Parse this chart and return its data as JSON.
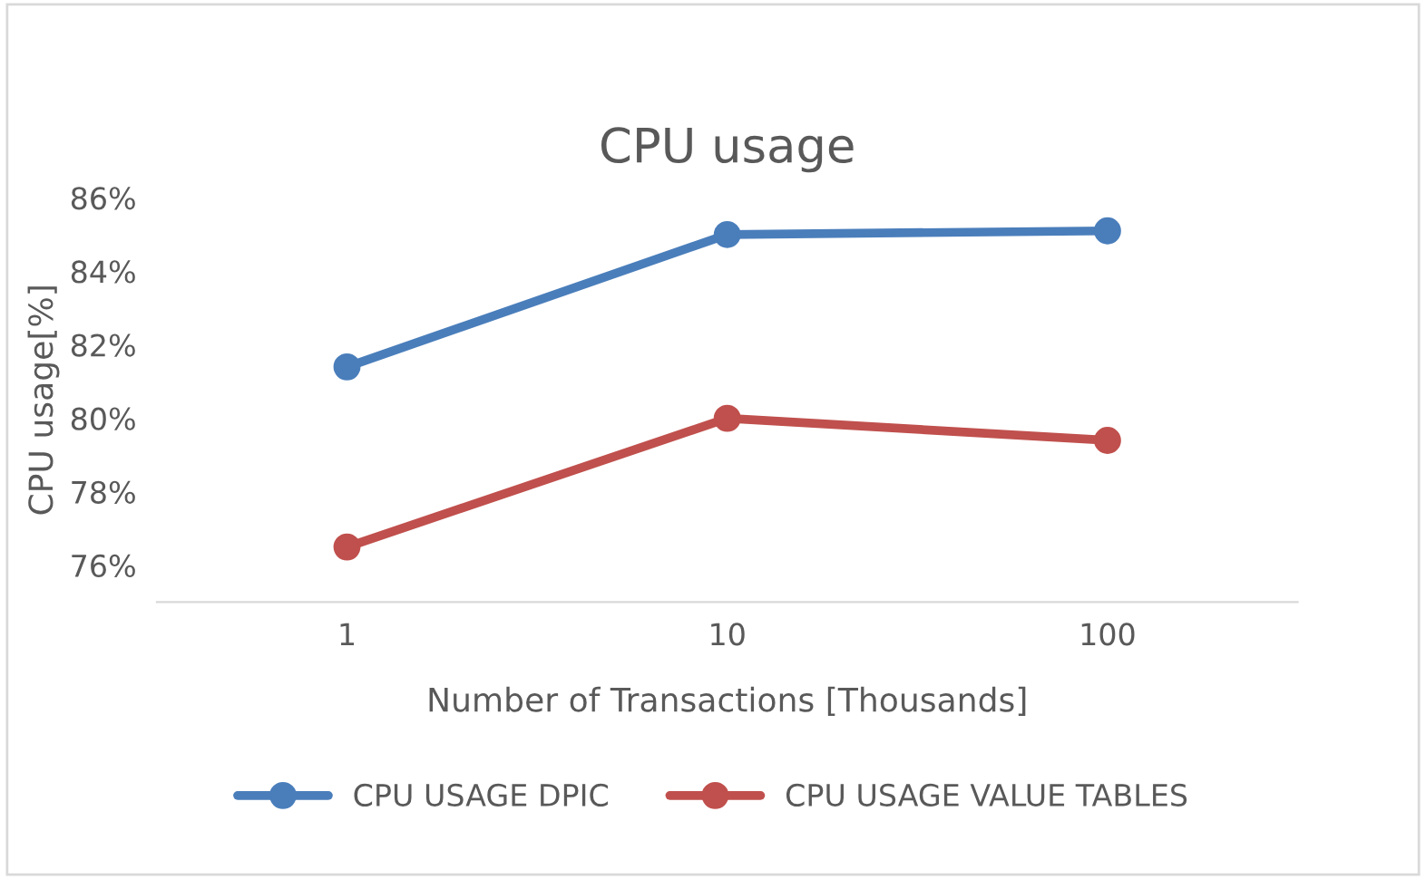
{
  "chart_data": {
    "type": "line",
    "title": "CPU usage",
    "xlabel": "Number of Transactions [Thousands]",
    "ylabel": "CPU usage[%]",
    "categories": [
      "1",
      "10",
      "100"
    ],
    "series": [
      {
        "name": "CPU USAGE DPIC",
        "color": "#4a7ebb",
        "values": [
          81.4,
          85.0,
          85.1
        ]
      },
      {
        "name": "CPU USAGE VALUE TABLES",
        "color": "#c0504d",
        "values": [
          76.5,
          80.0,
          79.4
        ]
      }
    ],
    "ylim": [
      75,
      86
    ],
    "yticks": [
      {
        "value": 76,
        "label": "76%"
      },
      {
        "value": 78,
        "label": "78%"
      },
      {
        "value": 80,
        "label": "80%"
      },
      {
        "value": 82,
        "label": "82%"
      },
      {
        "value": 84,
        "label": "84%"
      },
      {
        "value": 86,
        "label": "86%"
      }
    ],
    "grid": false,
    "legend": "bottom",
    "marker": "circle",
    "line_style": "solid"
  }
}
